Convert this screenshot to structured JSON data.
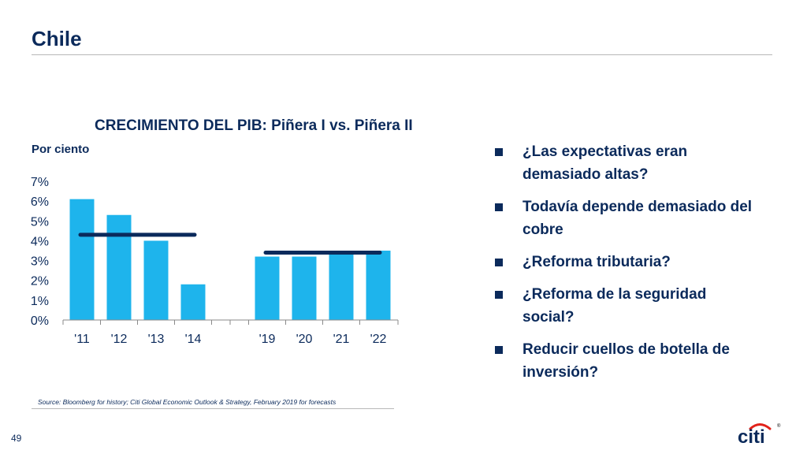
{
  "slide": {
    "title": "Chile",
    "unit_label": "Por ciento",
    "page_number": "49",
    "source": "Source: Bloomberg for history; Citi Global Economic Outlook & Strategy, February 2019 for forecasts",
    "logo_text": "citi"
  },
  "bullets": [
    "¿Las expectativas eran demasiado altas?",
    "Todavía depende demasiado del cobre",
    "¿Reforma tributaria?",
    "¿Reforma de la seguridad social?",
    "Reducir cuellos de botella de inversión?"
  ],
  "colors": {
    "bar": "#1eb4ec",
    "average_line": "#0b2a5b",
    "text": "#0b2a5b",
    "logo_blue": "#0b2a5b",
    "logo_arc": "#e2231a"
  },
  "chart_data": {
    "type": "bar",
    "title": "CRECIMIENTO DEL PIB: Piñera I vs. Piñera II",
    "ylabel": "Por ciento",
    "categories": [
      "'11",
      "'12",
      "'13",
      "'14",
      "'19",
      "'20",
      "'21",
      "'22"
    ],
    "values": [
      6.1,
      5.3,
      4.0,
      1.8,
      3.2,
      3.2,
      3.4,
      3.5
    ],
    "ylim": [
      0,
      7
    ],
    "yticks": [
      "0%",
      "1%",
      "2%",
      "3%",
      "4%",
      "5%",
      "6%",
      "7%"
    ],
    "average_lines": [
      {
        "from": "'11",
        "to": "'14",
        "value": 4.3
      },
      {
        "from": "'19",
        "to": "'22",
        "value": 3.4
      }
    ],
    "grid": false,
    "legend": "none"
  }
}
